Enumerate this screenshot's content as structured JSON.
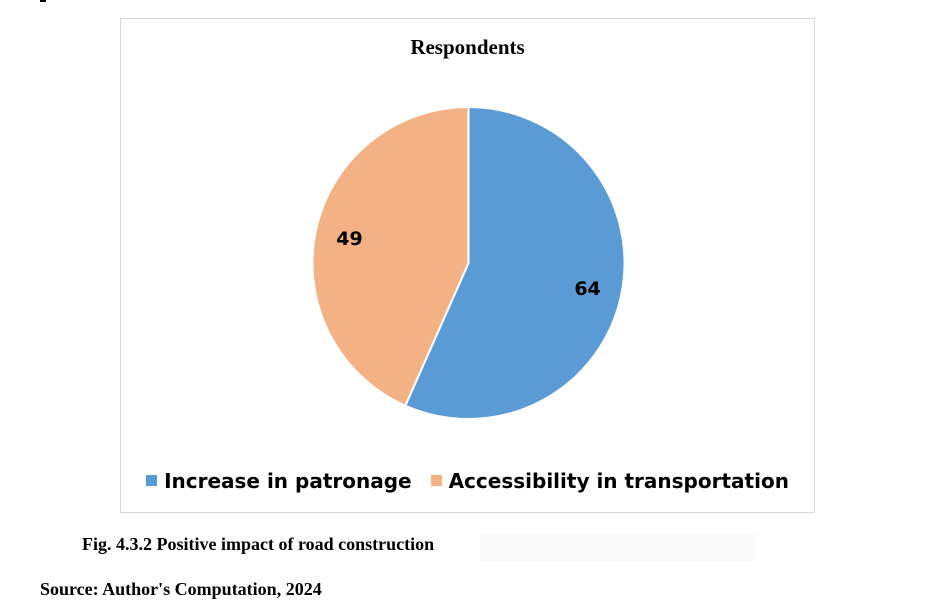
{
  "chart_data": {
    "type": "pie",
    "title": "Respondents",
    "labels": [
      "Increase in patronage",
      "Accessibility in transportation"
    ],
    "values": [
      64,
      49
    ],
    "colors": [
      "#5B9BD5",
      "#F4B183"
    ],
    "start_angle_deg": 0,
    "direction": "clockwise",
    "legend_position": "bottom"
  },
  "figure": {
    "caption": "Fig. 4.3.2 Positive impact of road construction",
    "source": "Source: Author's Computation, 2024"
  }
}
